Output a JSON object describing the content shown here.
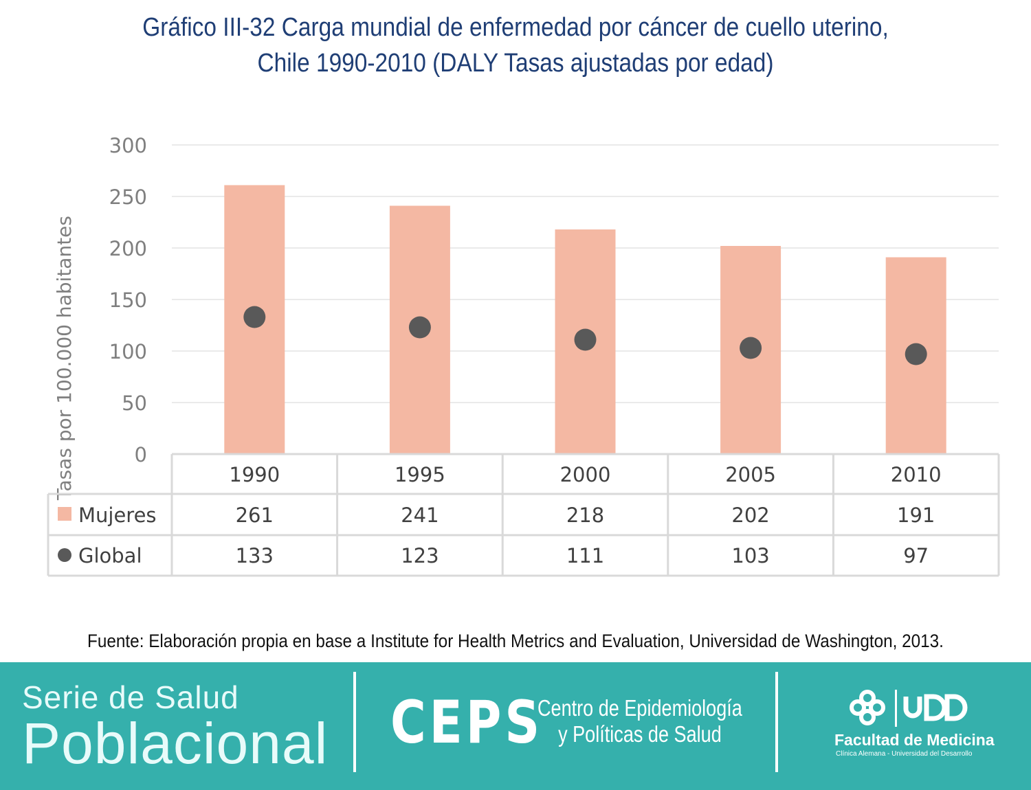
{
  "title_line1": "Gráfico III-32 Carga mundial de enfermedad por cáncer de cuello uterino,",
  "title_line2": "Chile 1990-2010 (DALY Tasas ajustadas por edad)",
  "source": "Fuente: Elaboración propia en base a Institute for Health Metrics and Evaluation, Universidad de Washington, 2013.",
  "banner": {
    "serie_line1": "Serie de Salud",
    "serie_line2": "Poblacional",
    "ceps": "CEPS",
    "ceps_line1": "Centro de Epidemiología",
    "ceps_line2": "y Políticas de Salud",
    "logo_text": "UDD",
    "faculty": "Facultad de Medicina",
    "faculty_sub": "Clínica Alemana - Universidad del Desarrollo"
  },
  "colors": {
    "bar": "#f4b8a3",
    "dot": "#595959",
    "banner": "#35b0ac",
    "title": "#1f3e75"
  },
  "chart_data": {
    "type": "bar",
    "categories": [
      "1990",
      "1995",
      "2000",
      "2005",
      "2010"
    ],
    "series": [
      {
        "name": "Mujeres",
        "kind": "bar",
        "values": [
          261,
          241,
          218,
          202,
          191
        ]
      },
      {
        "name": "Global",
        "kind": "dot",
        "values": [
          133,
          123,
          111,
          103,
          97
        ]
      }
    ],
    "ylabel": "Tasas por 100.000 habitantes",
    "ylim": [
      0,
      300
    ],
    "yticks": [
      "0",
      "50",
      "100",
      "150",
      "200",
      "250",
      "300"
    ],
    "grid": true,
    "data_table": true
  }
}
